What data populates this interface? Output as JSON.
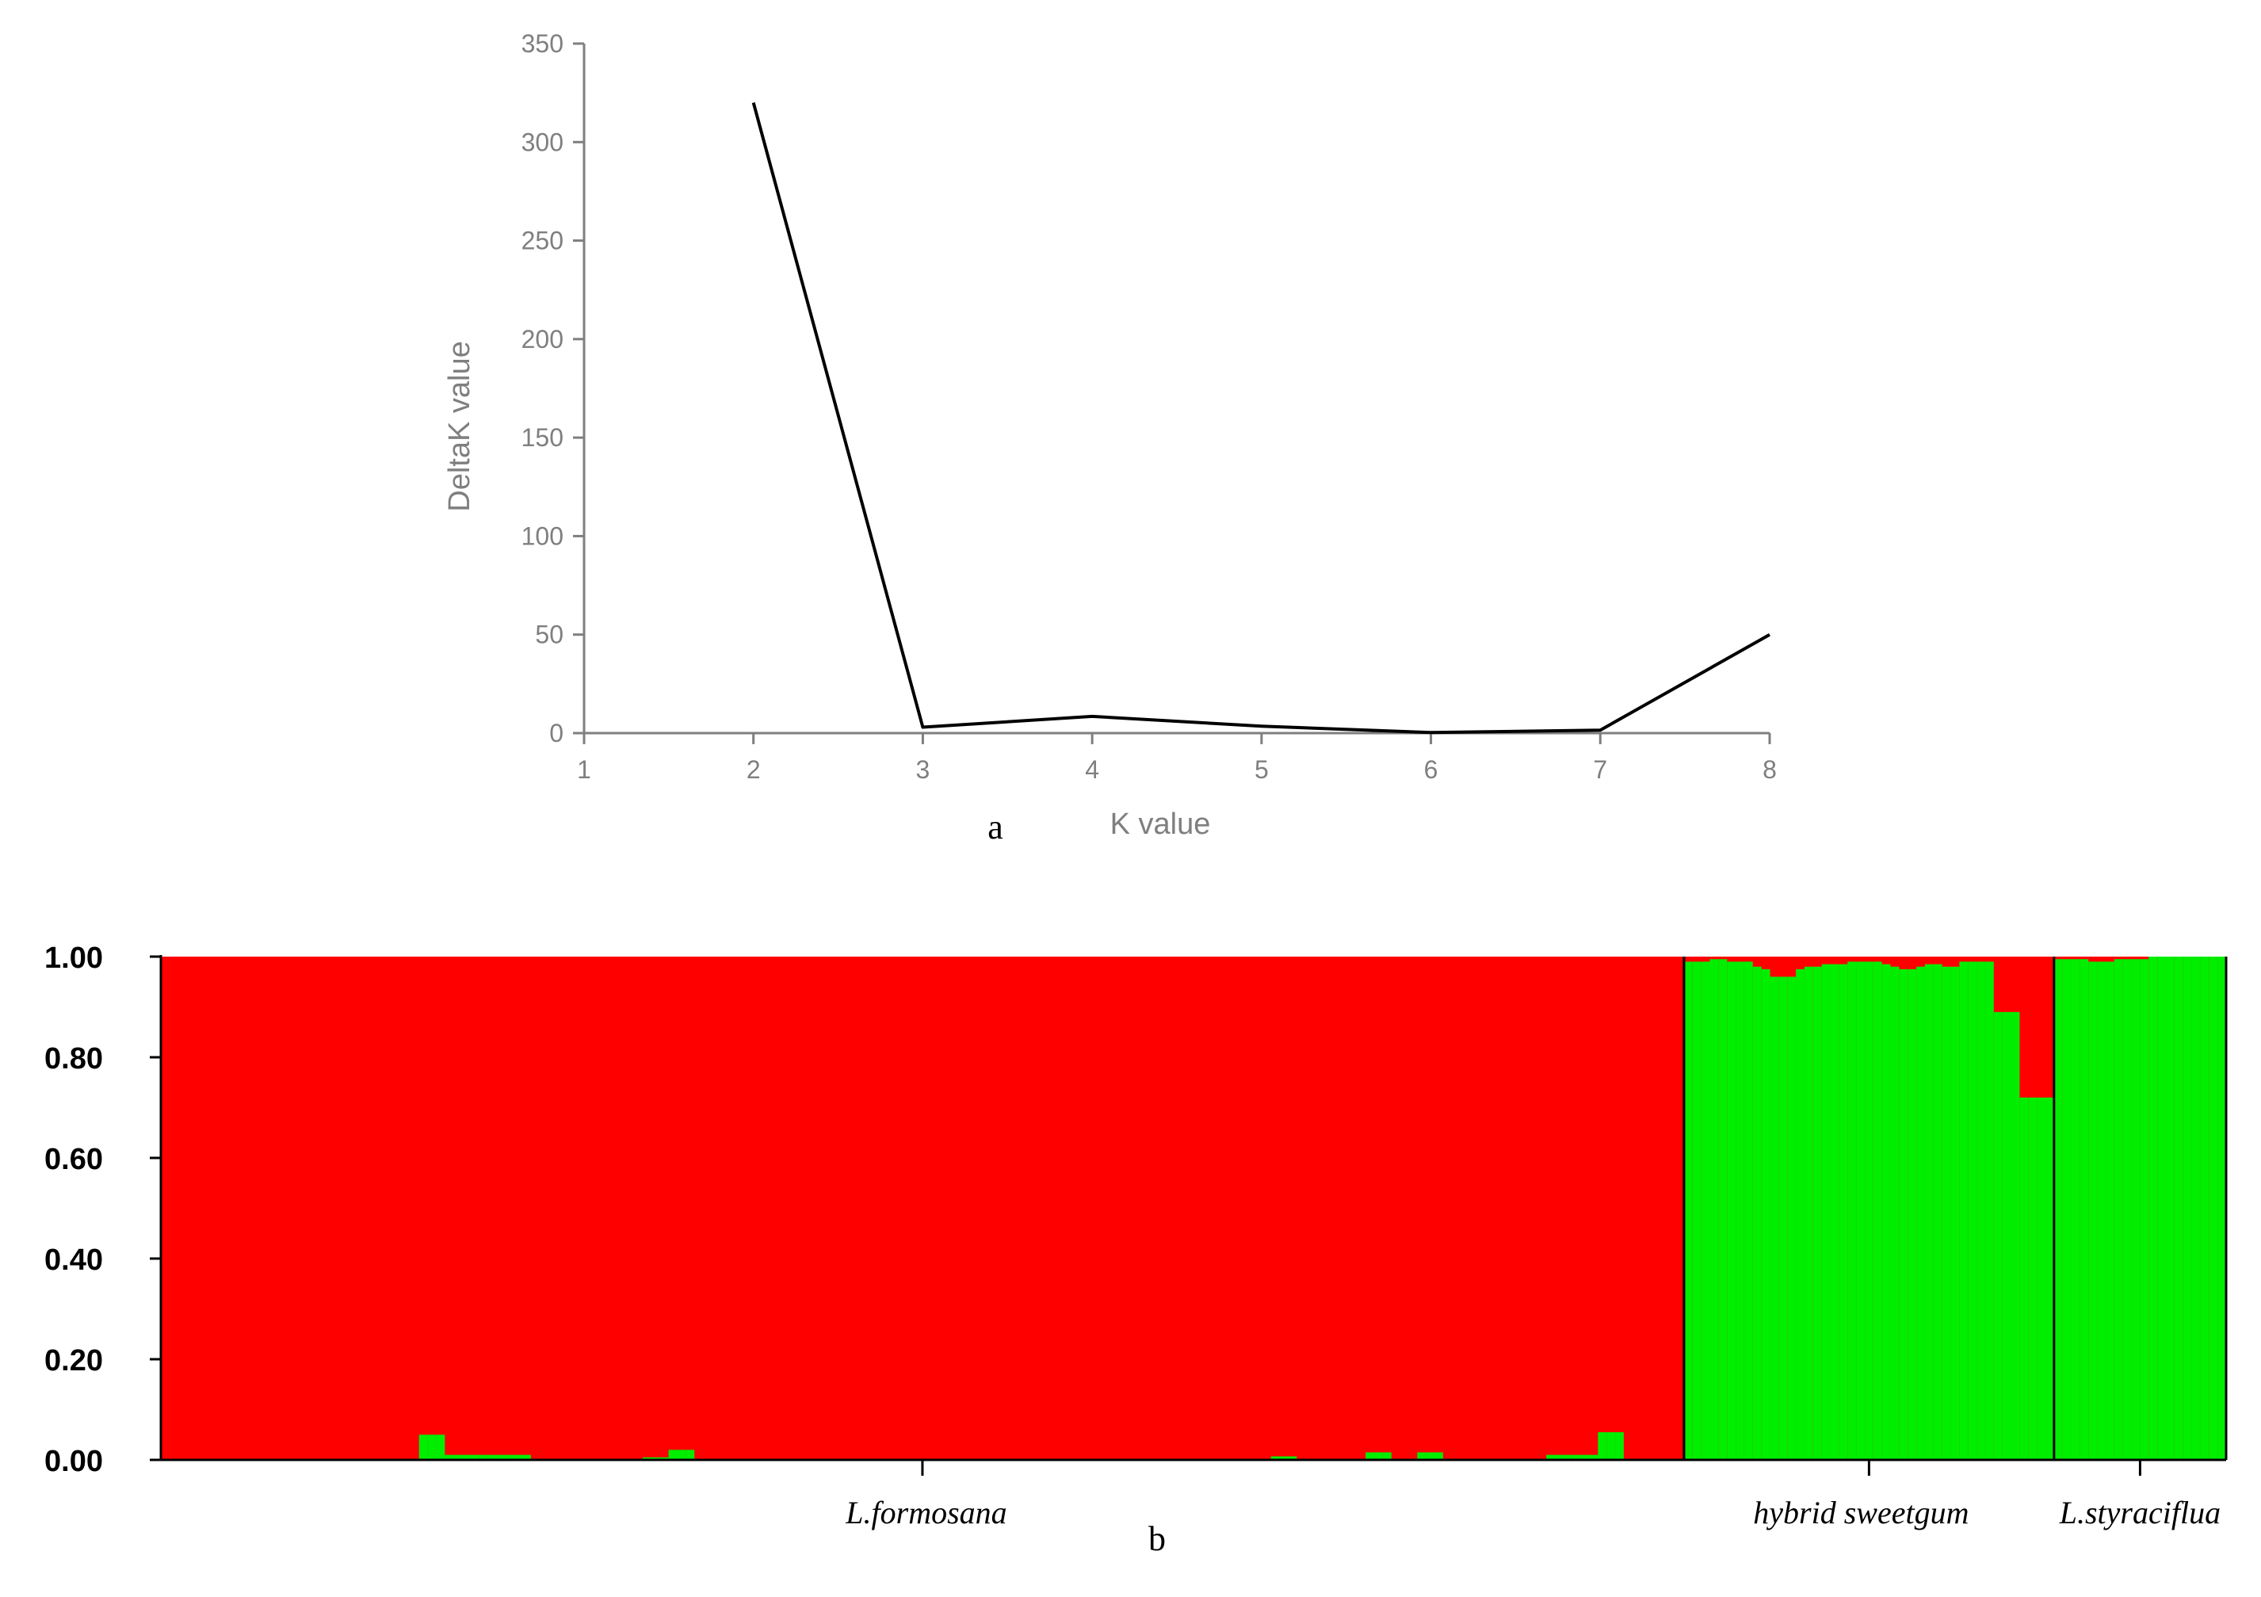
{
  "chart_data": [
    {
      "type": "line",
      "panel_label": "a",
      "xlabel": "K value",
      "ylabel": "DeltaK value",
      "x": [
        1,
        2,
        3,
        4,
        5,
        6,
        7,
        8
      ],
      "series": [
        {
          "x": [
            2,
            3,
            4,
            5,
            6,
            7,
            8
          ],
          "values": [
            320,
            3,
            8.5,
            3.5,
            0.3,
            1.5,
            50
          ]
        }
      ],
      "xlim": [
        1,
        8
      ],
      "ylim": [
        0,
        350
      ],
      "yticks": [
        "0",
        "50",
        "100",
        "150",
        "200",
        "250",
        "300",
        "350"
      ],
      "xticks": [
        "1",
        "2",
        "3",
        "4",
        "5",
        "6",
        "7",
        "8"
      ],
      "grid": false,
      "colors": {
        "line": "#000000",
        "axis": "#7f7f7f"
      }
    },
    {
      "type": "bar",
      "stacked": true,
      "panel_label": "b",
      "ylim": [
        0,
        1
      ],
      "yticks": [
        "0.00",
        "0.20",
        "0.40",
        "0.60",
        "0.80",
        "1.00"
      ],
      "groups": [
        {
          "label": "L.formosana",
          "individuals": 177
        },
        {
          "label": "hybrid sweetgum",
          "individuals": 43
        },
        {
          "label": "L.styraciflua",
          "individuals": 20
        }
      ],
      "series": [
        {
          "color": "#00ee00"
        },
        {
          "color": "#ff0000"
        }
      ],
      "green_values": [
        [
          0,
          0,
          0,
          0,
          0,
          0,
          0,
          0,
          0,
          0,
          0,
          0,
          0,
          0,
          0,
          0,
          0,
          0,
          0,
          0,
          0,
          0,
          0,
          0,
          0,
          0,
          0,
          0,
          0,
          0,
          0.05,
          0.05,
          0.05,
          0.01,
          0.01,
          0.01,
          0.01,
          0.01,
          0.01,
          0.01,
          0.01,
          0.01,
          0.01,
          0,
          0,
          0,
          0,
          0,
          0,
          0,
          0,
          0,
          0,
          0,
          0,
          0,
          0.005,
          0.005,
          0.005,
          0.02,
          0.02,
          0.02,
          0,
          0,
          0,
          0,
          0,
          0,
          0,
          0,
          0,
          0,
          0,
          0,
          0,
          0,
          0,
          0,
          0,
          0,
          0,
          0,
          0,
          0,
          0,
          0,
          0,
          0,
          0,
          0,
          0,
          0,
          0,
          0,
          0,
          0,
          0,
          0,
          0,
          0,
          0,
          0,
          0,
          0,
          0,
          0,
          0,
          0,
          0,
          0,
          0,
          0,
          0,
          0,
          0,
          0,
          0,
          0,
          0,
          0,
          0,
          0,
          0,
          0,
          0,
          0,
          0,
          0,
          0,
          0.007,
          0.007,
          0.007,
          0,
          0,
          0,
          0,
          0,
          0,
          0,
          0,
          0.015,
          0.015,
          0.015,
          0,
          0,
          0,
          0.015,
          0.015,
          0.015,
          0,
          0,
          0,
          0,
          0,
          0,
          0,
          0,
          0,
          0,
          0,
          0,
          0.01,
          0.01,
          0.01,
          0.01,
          0.01,
          0.01,
          0.055,
          0.055,
          0.055,
          0,
          0,
          0,
          0,
          0,
          0,
          0,
          0,
          0
        ],
        [
          0.99,
          0.99,
          0.99,
          0.995,
          0.995,
          0.99,
          0.99,
          0.99,
          0.98,
          0.975,
          0.96,
          0.96,
          0.96,
          0.975,
          0.98,
          0.98,
          0.985,
          0.985,
          0.985,
          0.99,
          0.99,
          0.99,
          0.99,
          0.985,
          0.98,
          0.975,
          0.975,
          0.98,
          0.985,
          0.985,
          0.98,
          0.98,
          0.99,
          0.99,
          0.99,
          0.99,
          0.89,
          0.89,
          0.89,
          0.72,
          0.72,
          0.72,
          0.72
        ],
        [
          0.995,
          0.995,
          0.995,
          0.995,
          0.99,
          0.99,
          0.99,
          0.995,
          0.995,
          0.995,
          0.995,
          1,
          1,
          1,
          1,
          1,
          1,
          1,
          1,
          1
        ]
      ]
    }
  ]
}
